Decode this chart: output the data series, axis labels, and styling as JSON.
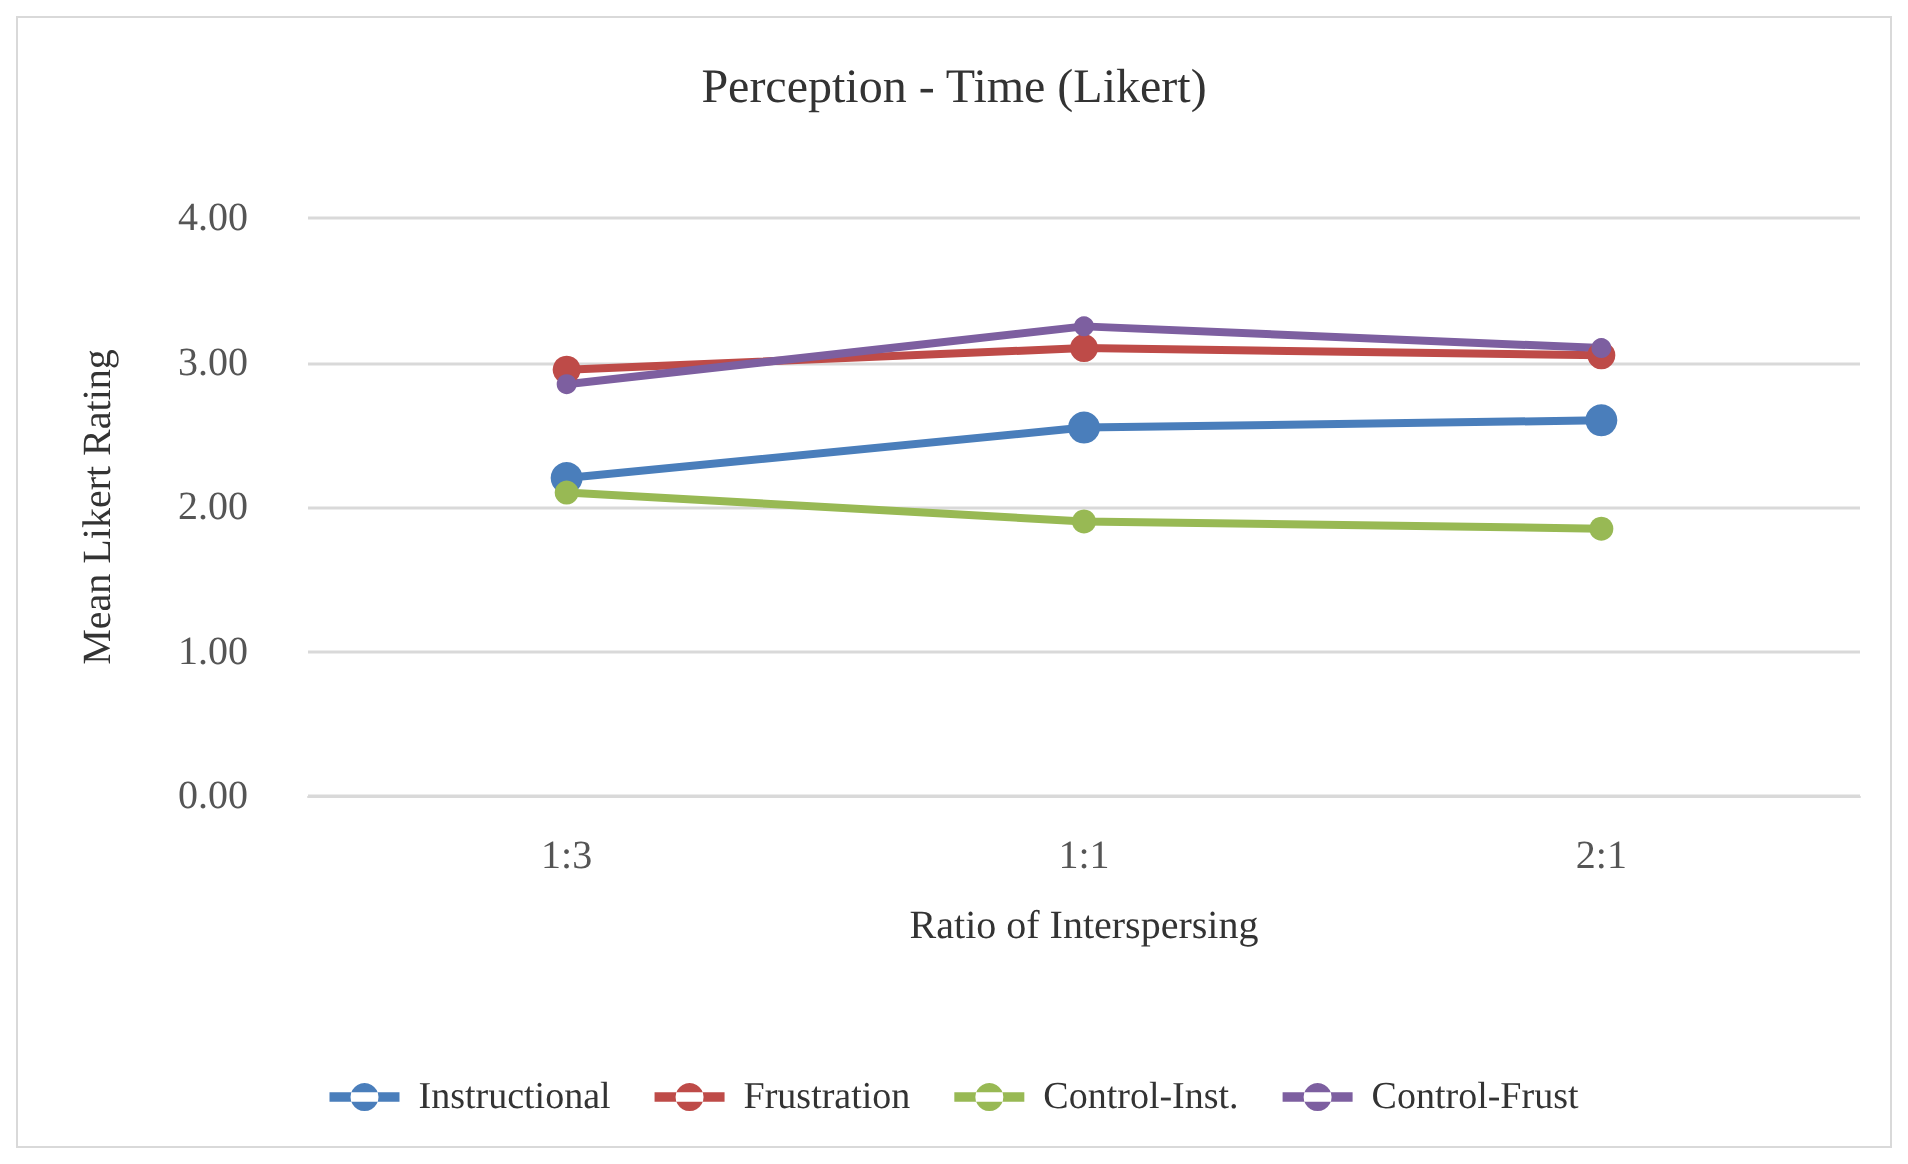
{
  "chart_data": {
    "type": "line",
    "title": "Perception - Time (Likert)",
    "xlabel": "Ratio of Interspersing",
    "ylabel": "Mean Likert Rating",
    "categories": [
      "1:3",
      "1:1",
      "2:1"
    ],
    "series": [
      {
        "name": "Instructional",
        "color": "#4a7ebb",
        "values": [
          2.2,
          2.55,
          2.6
        ]
      },
      {
        "name": "Frustration",
        "color": "#be4b48",
        "values": [
          2.95,
          3.1,
          3.05
        ]
      },
      {
        "name": "Control-Inst.",
        "color": "#98b954",
        "values": [
          2.1,
          1.9,
          1.85
        ]
      },
      {
        "name": "Control-Frust",
        "color": "#7d5fa0",
        "values": [
          2.85,
          3.25,
          3.1
        ]
      }
    ],
    "ylim": [
      0,
      4
    ],
    "yticks": [
      {
        "value": 0,
        "label": "0.00"
      },
      {
        "value": 1,
        "label": "1.00"
      },
      {
        "value": 2,
        "label": "2.00"
      },
      {
        "value": 3,
        "label": "3.00"
      },
      {
        "value": 4,
        "label": "4.00"
      }
    ],
    "grid": "y",
    "legend": "bottom",
    "marker": "circle",
    "line_style": "solid"
  }
}
